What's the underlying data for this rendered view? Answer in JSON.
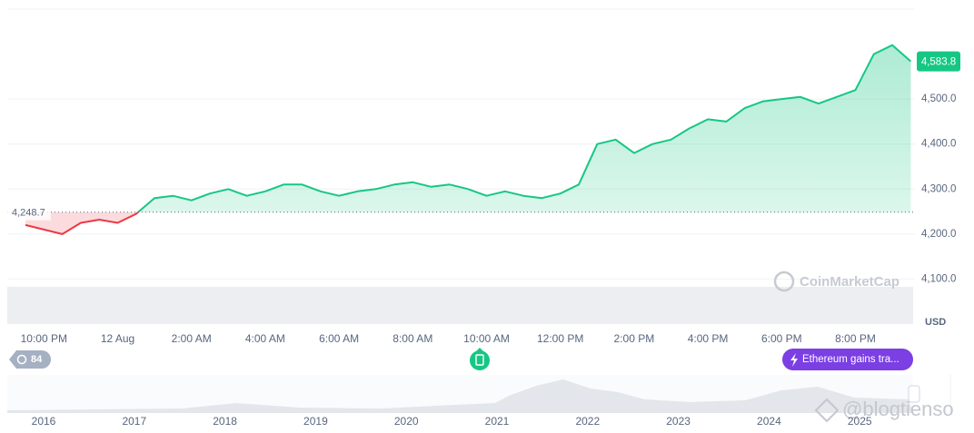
{
  "chart_data": {
    "type": "line",
    "categories": [
      null,
      "10:00 PM",
      null,
      null,
      null,
      "12 Aug",
      null,
      null,
      null,
      "2:00 AM",
      null,
      null,
      null,
      "4:00 AM",
      null,
      null,
      null,
      "6:00 AM",
      null,
      null,
      null,
      "8:00 AM",
      null,
      null,
      null,
      "10:00 AM",
      null,
      null,
      null,
      "12:00 PM",
      null,
      null,
      null,
      "2:00 PM",
      null,
      null,
      null,
      "4:00 PM",
      null,
      null,
      null,
      "6:00 PM",
      null,
      null,
      null,
      "8:00 PM",
      null,
      null,
      null
    ],
    "series": [
      {
        "name": "ETH",
        "color": "#16c784",
        "down_color": "#ea3943",
        "values": [
          4220,
          4210,
          4200,
          4225,
          4232,
          4225,
          4245,
          4280,
          4285,
          4275,
          4290,
          4300,
          4285,
          4295,
          4310,
          4310,
          4295,
          4285,
          4295,
          4300,
          4310,
          4315,
          4305,
          4310,
          4300,
          4285,
          4295,
          4285,
          4280,
          4290,
          4310,
          4400,
          4410,
          4380,
          4400,
          4410,
          4435,
          4455,
          4450,
          4480,
          4495,
          4500,
          4505,
          4490,
          4505,
          4520,
          4600,
          4620,
          4583.8
        ],
        "value_labels": [
          null,
          null,
          null,
          null,
          null,
          null,
          null,
          null,
          null,
          null,
          null,
          null,
          null,
          null,
          null,
          null,
          null,
          null,
          null,
          null,
          null,
          null,
          null,
          null,
          null,
          null,
          null,
          null,
          null,
          null,
          null,
          null,
          null,
          null,
          null,
          null,
          null,
          null,
          null,
          null,
          null,
          null,
          null,
          null,
          null,
          null,
          null,
          null,
          "4,583.8"
        ]
      }
    ],
    "reference": {
      "value": 4248.7,
      "label": "4,248.7"
    },
    "ylim": [
      4000,
      4700
    ],
    "yticks": [
      {
        "value": 4100,
        "label": "4,100.0"
      },
      {
        "value": 4200,
        "label": "4,200.0"
      },
      {
        "value": 4300,
        "label": "4,300.0"
      },
      {
        "value": 4400,
        "label": "4,400.0"
      },
      {
        "value": 4500,
        "label": "4,500.0"
      }
    ],
    "y_axis_label": "USD",
    "grid": true
  },
  "navigator": {
    "years": [
      "2016",
      "2017",
      "2018",
      "2019",
      "2020",
      "2021",
      "2022",
      "2023",
      "2024",
      "2025"
    ]
  },
  "badges": {
    "history": "84",
    "news": "Ethereum gains tra..."
  },
  "watermarks": {
    "brand": "CoinMarketCap",
    "site": "@blogtienso"
  }
}
